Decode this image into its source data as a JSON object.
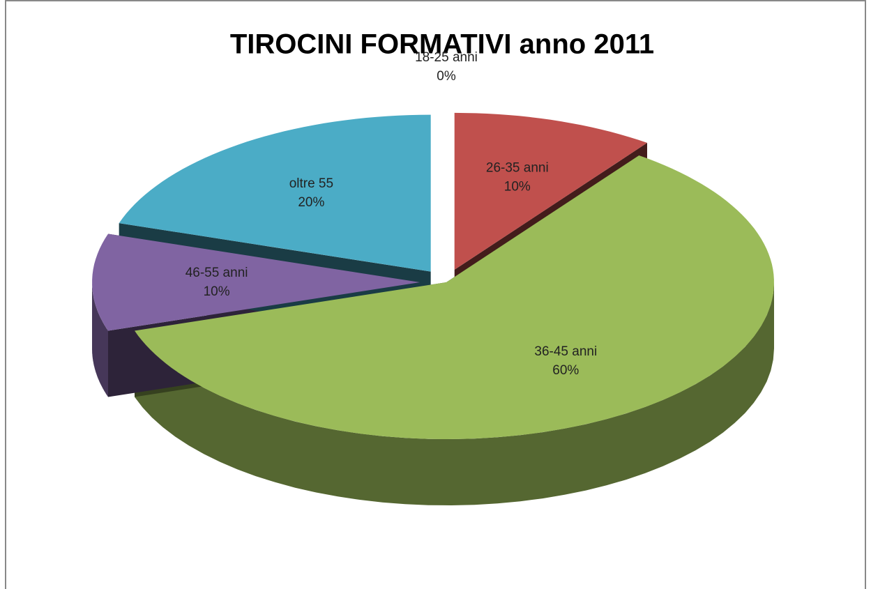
{
  "chart_data": {
    "type": "pie",
    "title": "TIROCINI  FORMATIVI anno 2011",
    "categories": [
      "18-25 anni",
      "26-35 anni",
      "36-45 anni",
      "46-55 anni",
      "oltre 55"
    ],
    "values": [
      0,
      10,
      60,
      10,
      20
    ],
    "value_labels": [
      "0%",
      "10%",
      "60%",
      "10%",
      "20%"
    ],
    "colors": [
      "#4f81bd",
      "#c0504d",
      "#9bbb59",
      "#8064a2",
      "#4bacc6"
    ]
  }
}
